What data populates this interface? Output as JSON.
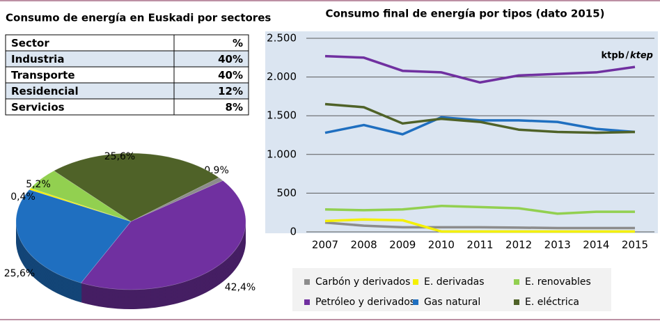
{
  "table": {
    "title": "Consumo de energía en Euskadi por sectores",
    "header": [
      "Sector",
      "%"
    ],
    "rows": [
      [
        "Industria",
        "40%"
      ],
      [
        "Transporte",
        "40%"
      ],
      [
        "Residencial",
        "12%"
      ],
      [
        "Servicios",
        "8%"
      ]
    ]
  },
  "chart_data": [
    {
      "type": "pie",
      "values": [
        0.9,
        42.4,
        25.6,
        0.4,
        5.2,
        25.6
      ],
      "value_labels": [
        "0,9%",
        "42,4%",
        "25,6%",
        "0,4%",
        "5,2%",
        "25,6%"
      ],
      "colors": [
        "#8c8c8c",
        "#7030a0",
        "#1f6fc0",
        "#f4f000",
        "#92d050",
        "#4f6228"
      ]
    },
    {
      "type": "line",
      "title": "Consumo final de energía por tipos (dato 2015)",
      "annotation": [
        "ktpb",
        "/",
        "ktep"
      ],
      "categories": [
        "2007",
        "2008",
        "2009",
        "2010",
        "2011",
        "2012",
        "2013",
        "2014",
        "2015"
      ],
      "ylim": [
        0,
        2500
      ],
      "yticks": [
        0,
        500,
        {
          "value": 1000,
          "label": "1.000"
        },
        {
          "value": 1500,
          "label": "1.500"
        },
        {
          "value": 2000,
          "label": "2.000"
        },
        {
          "value": 2500,
          "label": "2.500"
        }
      ],
      "grid": true,
      "series": [
        {
          "name": "Carbón y derivados",
          "color": "#8c8c8c",
          "values": [
            120,
            80,
            60,
            60,
            60,
            55,
            50,
            50,
            50
          ]
        },
        {
          "name": "E. derivadas",
          "color": "#f4f000",
          "values": [
            140,
            160,
            150,
            5,
            5,
            5,
            5,
            5,
            5
          ]
        },
        {
          "name": "E. renovables",
          "color": "#92d050",
          "values": [
            290,
            280,
            290,
            335,
            320,
            305,
            235,
            260,
            260
          ]
        },
        {
          "name": "Petróleo y derivados",
          "color": "#7030a0",
          "values": [
            2270,
            2250,
            2080,
            2060,
            1930,
            2020,
            2040,
            2060,
            2130
          ]
        },
        {
          "name": "Gas natural",
          "color": "#1f6fc0",
          "values": [
            1280,
            1380,
            1260,
            1480,
            1440,
            1440,
            1420,
            1330,
            1290
          ]
        },
        {
          "name": "E. eléctrica",
          "color": "#4f6228",
          "values": [
            1650,
            1610,
            1400,
            1460,
            1420,
            1320,
            1290,
            1280,
            1290
          ]
        }
      ]
    }
  ]
}
